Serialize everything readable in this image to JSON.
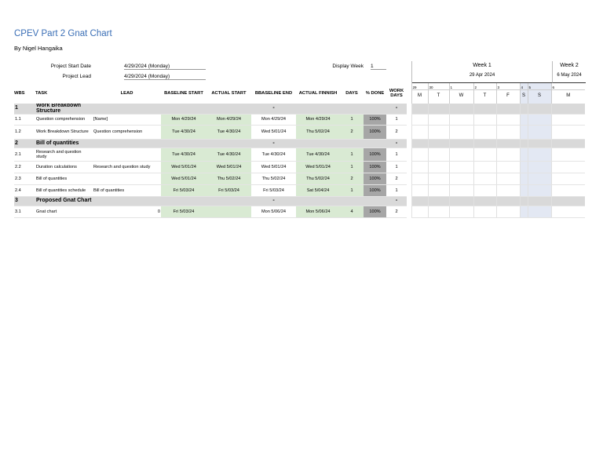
{
  "header": {
    "title": "CPEV Part 2 Gnat Chart",
    "author": "By Nigel Hangaika"
  },
  "project": {
    "start_label": "Project Start Date",
    "start_value": "4/29/2024 (Monday)",
    "lead_label": "Project Lead",
    "lead_value": "4/29/2024 (Monday)",
    "display_week_label": "Display Week",
    "display_week_value": "1"
  },
  "timeline": {
    "weeks": [
      {
        "label": "Week 1",
        "date": "29 Apr 2024"
      },
      {
        "label": "Week 2",
        "date": "6 May 2024"
      }
    ],
    "days": [
      {
        "num": "29",
        "letter": "M"
      },
      {
        "num": "30",
        "letter": "T"
      },
      {
        "num": "1",
        "letter": "W"
      },
      {
        "num": "2",
        "letter": "T"
      },
      {
        "num": "3",
        "letter": "F"
      },
      {
        "num": "4",
        "letter": "S"
      },
      {
        "num": "5",
        "letter": "S"
      },
      {
        "num": "6",
        "letter": "M"
      }
    ]
  },
  "table": {
    "columns": [
      "WBS",
      "TASK",
      "LEAD",
      "BASELINE START",
      "ACTUAL START",
      "BBASELINE END",
      "ACTUAL FINNISH",
      "DAYS",
      "% DONE",
      "WORK DAYS"
    ],
    "rows": [
      {
        "wbs": "1",
        "task": "Work Breakdown Structure",
        "baseline_end": "-",
        "work_days": "-"
      },
      {
        "wbs": "1.1",
        "task": "Question comprehension",
        "lead": "[Name]",
        "baseline_start": "Mon 4/29/24",
        "actual_start": "Mon 4/29/24",
        "baseline_end": "Mon 4/29/24",
        "actual_finish": "Mon 4/29/24",
        "days": "1",
        "done": "100%",
        "work_days": "1"
      },
      {
        "wbs": "1.2",
        "task": "Work Breakdown Structure",
        "lead": "Question comprehension",
        "baseline_start": "Tue 4/30/24",
        "actual_start": "Tue 4/30/24",
        "baseline_end": "Wed 5/01/24",
        "actual_finish": "Thu 5/02/24",
        "days": "2",
        "done": "100%",
        "work_days": "2"
      },
      {
        "wbs": "2",
        "task": "Bill of quantities",
        "baseline_end": "-",
        "work_days": "-"
      },
      {
        "wbs": "2.1",
        "task": "Research and question study",
        "baseline_start": "Tue 4/30/24",
        "actual_start": "Tue 4/30/24",
        "baseline_end": "Tue 4/30/24",
        "actual_finish": "Tue 4/30/24",
        "days": "1",
        "done": "100%",
        "work_days": "1"
      },
      {
        "wbs": "2.2",
        "task": "Duration calculations",
        "lead": "Research and question study",
        "baseline_start": "Wed 5/01/24",
        "actual_start": "Wed 5/01/24",
        "baseline_end": "Wed 5/01/24",
        "actual_finish": "Wed 5/01/24",
        "days": "1",
        "done": "100%",
        "work_days": "1"
      },
      {
        "wbs": "2.3",
        "task": "Bill of quantities",
        "baseline_start": "Wed 5/01/24",
        "actual_start": "Thu 5/02/24",
        "baseline_end": "Thu 5/02/24",
        "actual_finish": "Thu 5/02/24",
        "days": "2",
        "done": "100%",
        "work_days": "2"
      },
      {
        "wbs": "2.4",
        "task": "Bill of quantities schedule",
        "lead": "Bill of quantities",
        "baseline_start": "Fri 5/03/24",
        "actual_start": "Fri 5/03/24",
        "baseline_end": "Fri 5/03/24",
        "actual_finish": "Sat 5/04/24",
        "days": "1",
        "done": "100%",
        "work_days": "1"
      },
      {
        "wbs": "3",
        "task": "Proposed Gnat Chart",
        "baseline_end": "-",
        "work_days": "-"
      },
      {
        "wbs": "3.1",
        "task": "Gnat chart",
        "lead": "0",
        "baseline_start": "Fri 5/03/24",
        "baseline_end": "Mon 5/06/24",
        "actual_finish": "Mon 5/06/24",
        "days": "4",
        "done": "100%",
        "work_days": "2"
      }
    ]
  }
}
